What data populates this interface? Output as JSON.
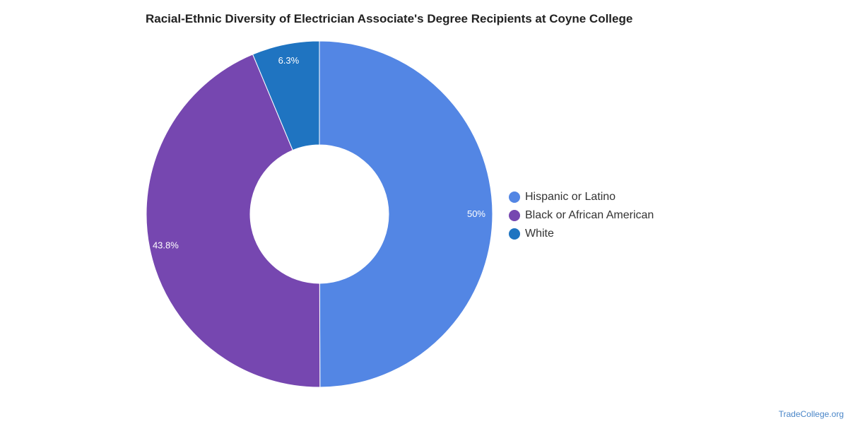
{
  "chart_data": {
    "type": "pie",
    "title": "Racial-Ethnic Diversity of Electrician Associate's Degree Recipients at Coyne College",
    "donut": true,
    "legend_position": "right",
    "slices": [
      {
        "label": "Hispanic or Latino",
        "value": 50,
        "display": "50%",
        "color": "#5386e4"
      },
      {
        "label": "Black or African American",
        "value": 43.8,
        "display": "43.8%",
        "color": "#7647b0"
      },
      {
        "label": "White",
        "value": 6.3,
        "display": "6.3%",
        "color": "#1f74c1"
      }
    ]
  },
  "source": "TradeCollege.org"
}
